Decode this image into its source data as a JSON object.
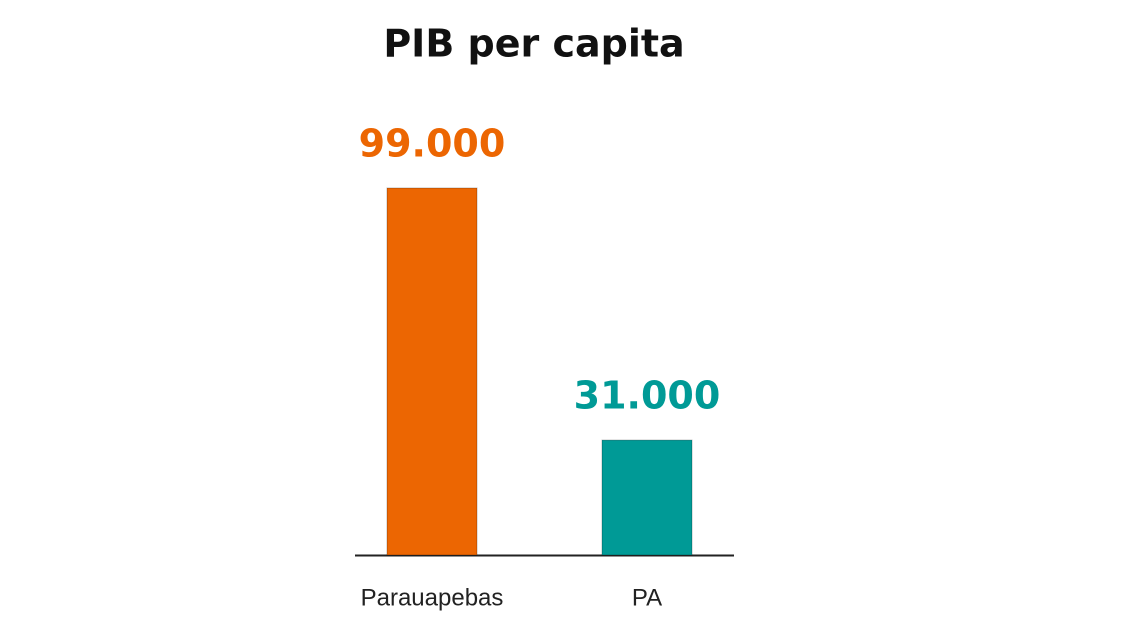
{
  "chart_data": {
    "type": "bar",
    "title": "PIB per capita",
    "categories": [
      "Parauapebas",
      "PA"
    ],
    "values": [
      99000,
      31000
    ],
    "value_labels": [
      "99.000",
      "31.000"
    ],
    "colors": [
      "#ec6602",
      "#009a96"
    ]
  }
}
